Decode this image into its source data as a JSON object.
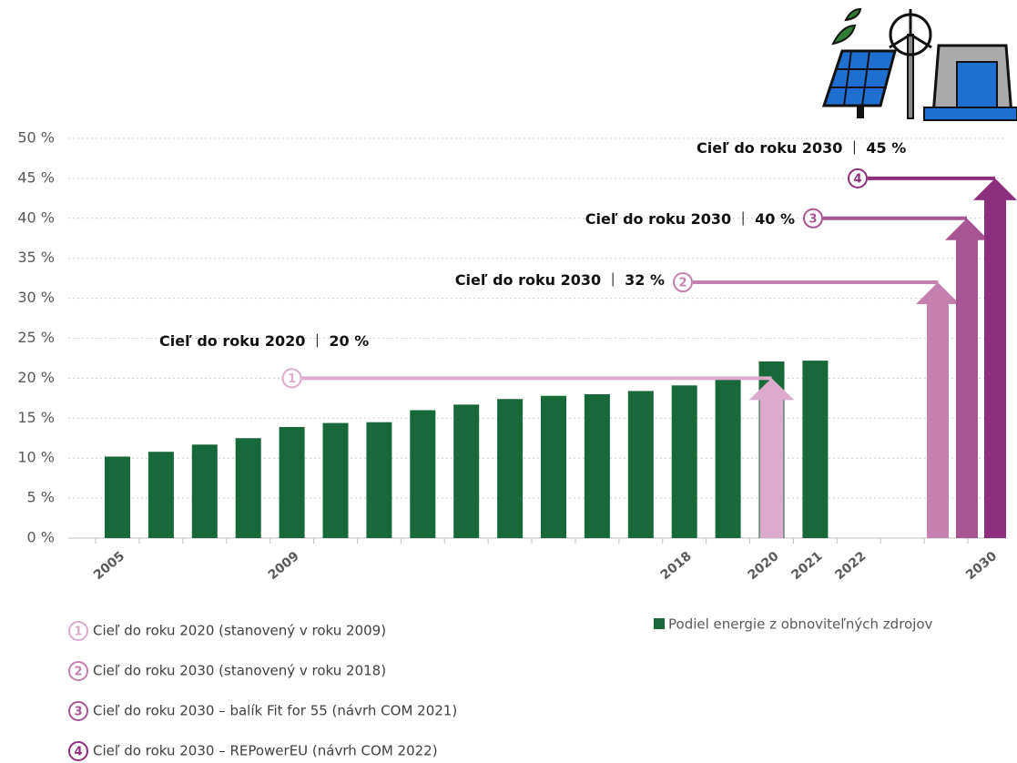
{
  "chart_data": {
    "type": "bar",
    "categories": [
      "2005",
      null,
      null,
      null,
      "2009",
      null,
      null,
      null,
      null,
      null,
      null,
      null,
      null,
      "2018",
      null,
      "2020",
      "2021",
      "2022",
      null,
      null,
      "2030"
    ],
    "series": [
      {
        "name": "Podiel energie z obnoviteľných zdrojov",
        "color": "#17693a",
        "values": [
          10.2,
          10.8,
          11.7,
          12.5,
          13.9,
          14.4,
          14.5,
          16.0,
          16.7,
          17.4,
          17.8,
          18.0,
          18.4,
          19.1,
          19.9,
          22.1,
          22.2,
          null,
          null,
          null,
          null
        ]
      }
    ],
    "ylim": [
      0,
      50
    ],
    "yticks": [
      {
        "value": 0,
        "label": "0 %"
      },
      {
        "value": 5,
        "label": "5 %"
      },
      {
        "value": 10,
        "label": "10 %"
      },
      {
        "value": 15,
        "label": "15 %"
      },
      {
        "value": 20,
        "label": "20 %"
      },
      {
        "value": 25,
        "label": "25 %"
      },
      {
        "value": 30,
        "label": "30 %"
      },
      {
        "value": 35,
        "label": "35 %"
      },
      {
        "value": 40,
        "label": "40 %"
      },
      {
        "value": 45,
        "label": "45 %"
      },
      {
        "value": 50,
        "label": "50 %"
      }
    ],
    "grid": true,
    "targets": [
      {
        "marker": "1",
        "label": "Cieľ do roku 2020",
        "value": 20,
        "value_label": "20 %",
        "color": "#dcaacb",
        "description": "Cieľ do roku 2020 (stanovený v roku 2009)"
      },
      {
        "marker": "2",
        "label": "Cieľ do roku 2030",
        "value": 32,
        "value_label": "32 %",
        "color": "#c580b0",
        "description": "Cieľ do roku 2030 (stanovený v roku 2018)"
      },
      {
        "marker": "3",
        "label": "Cieľ do roku 2030",
        "value": 40,
        "value_label": "40 %",
        "color": "#a85594",
        "description": "Cieľ do roku 2030 – balík Fit for 55 (návrh COM 2021)"
      },
      {
        "marker": "4",
        "label": "Cieľ do roku 2030",
        "value": 45,
        "value_label": "45 %",
        "color": "#8e2f7d",
        "description": "Cieľ do roku 2030 – REPowerEU (návrh COM 2022)"
      }
    ]
  }
}
